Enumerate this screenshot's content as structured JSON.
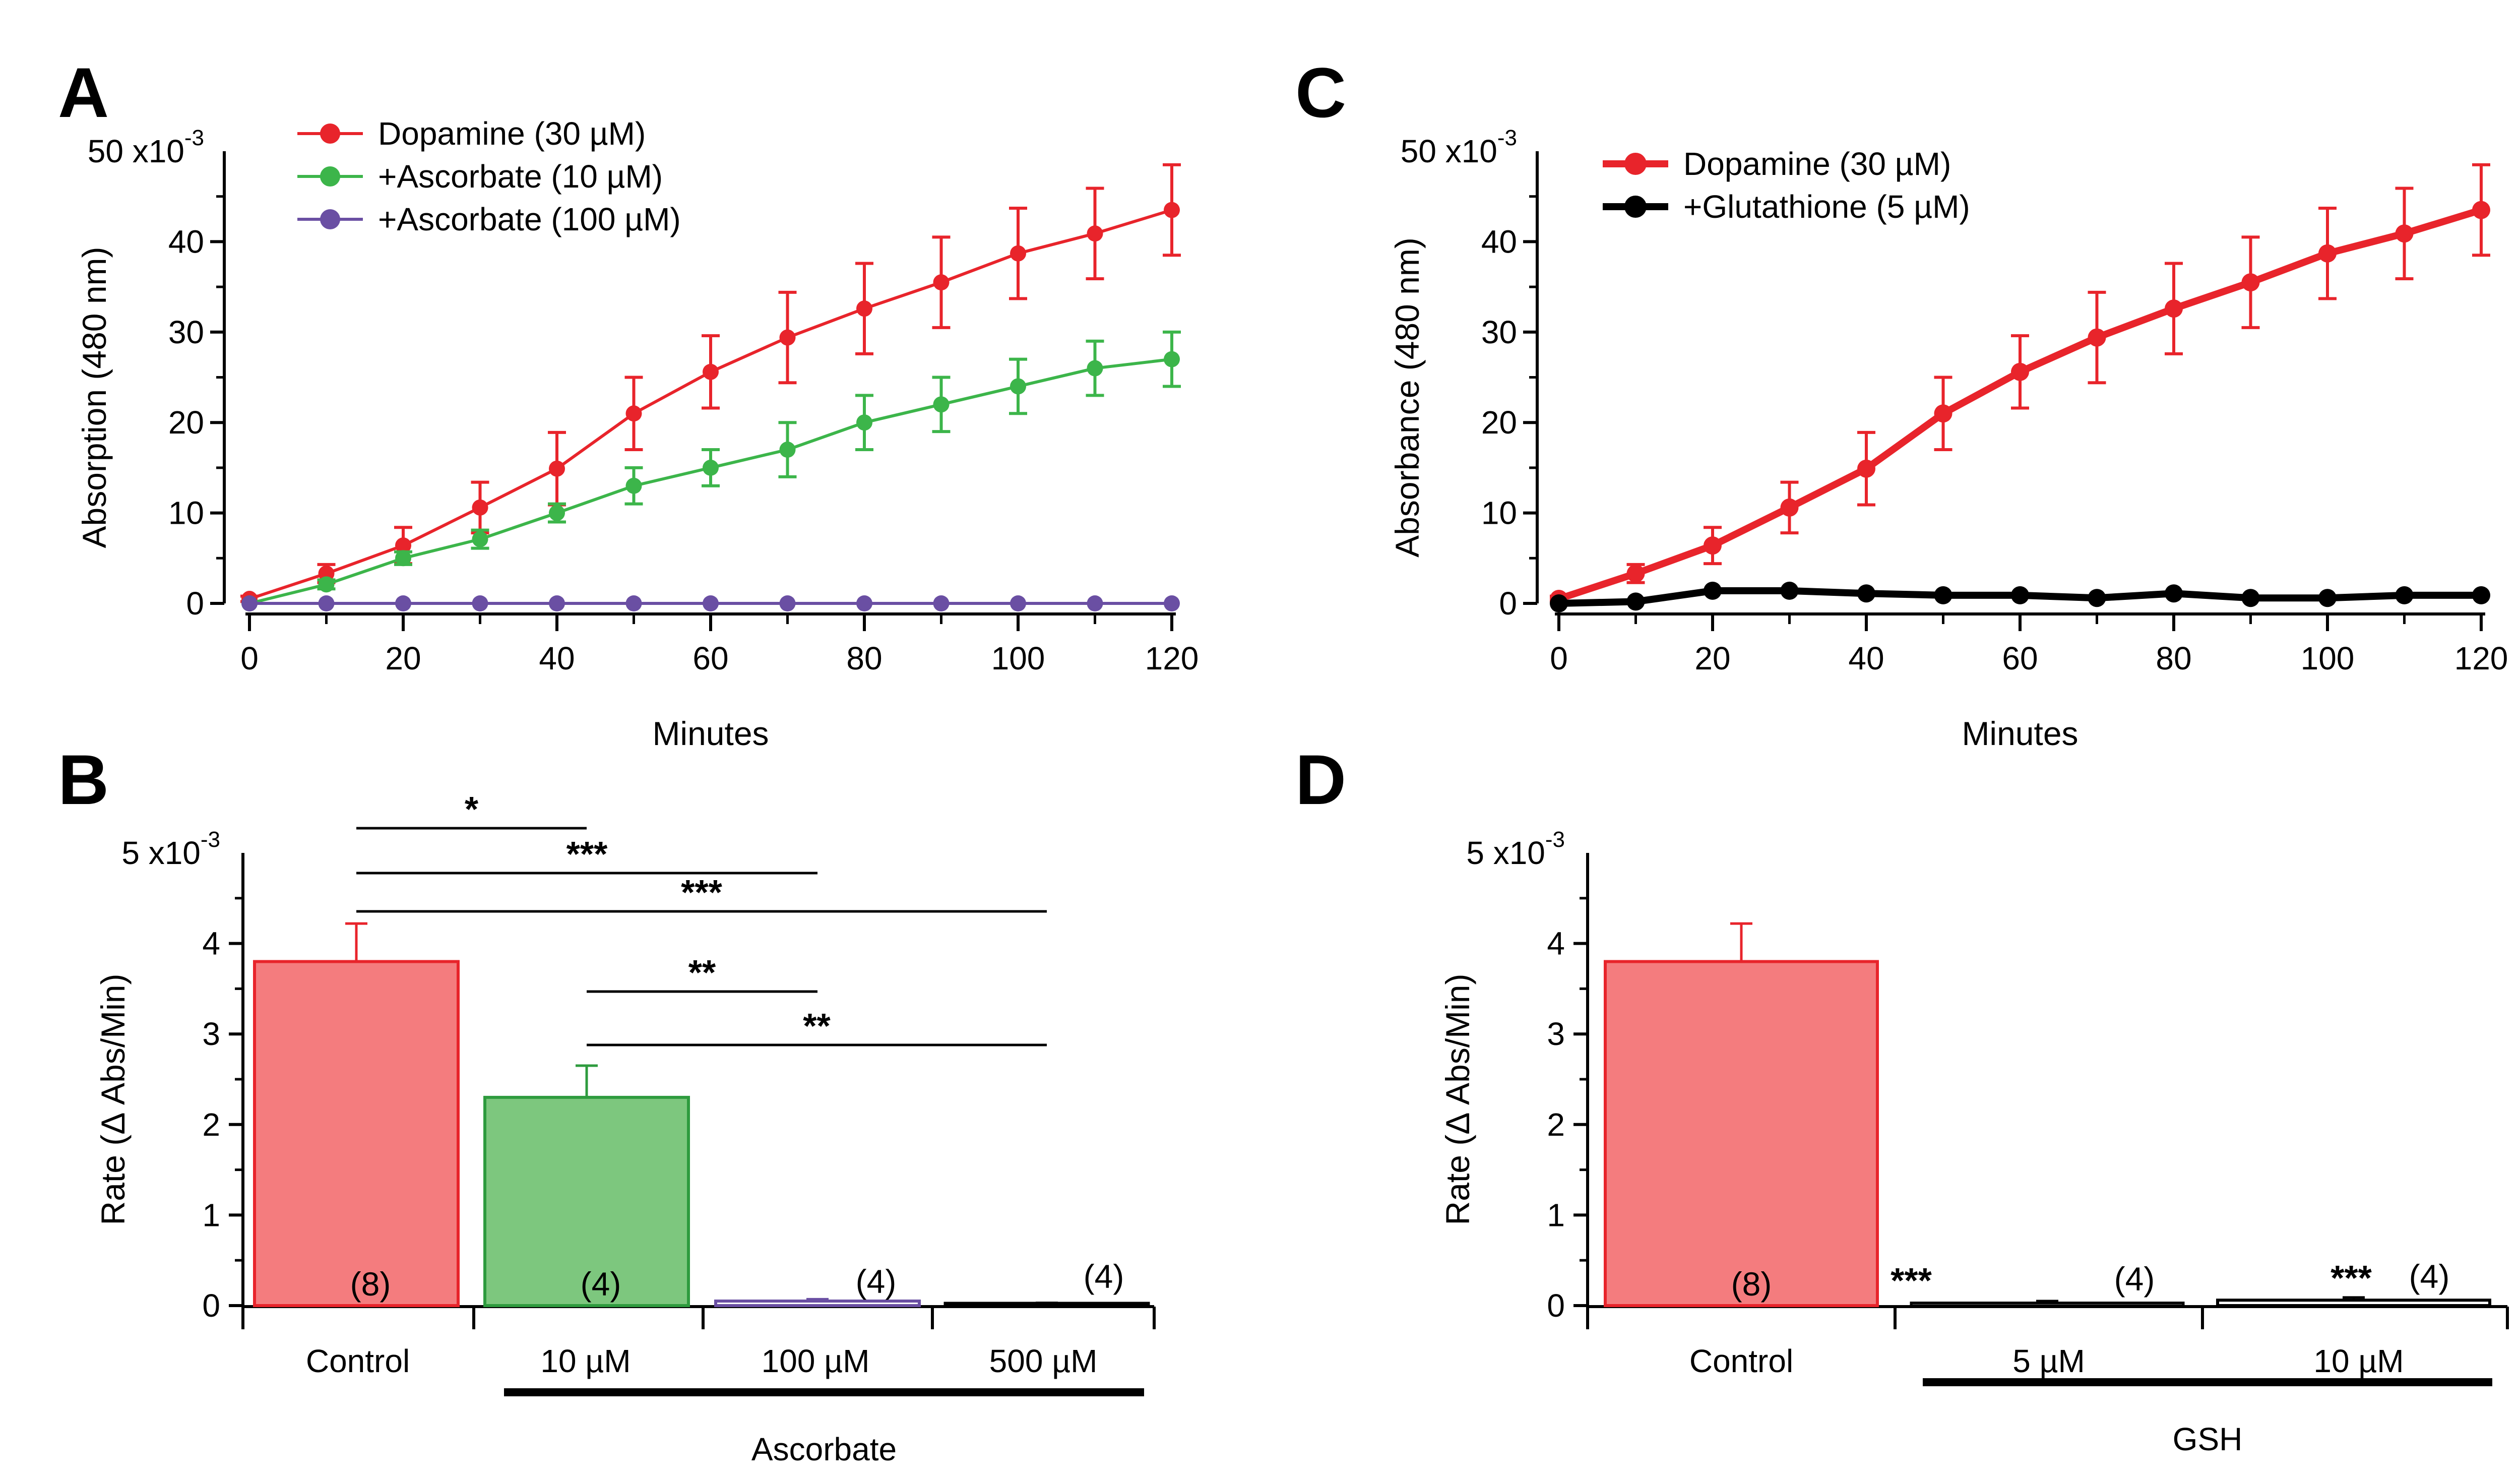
{
  "colors": {
    "dopamine": "#e8242b",
    "ascorbate10": "#3cb54a",
    "ascorbate100": "#6a4fa3",
    "glutathione": "#000000",
    "control_bar_fill": "#f47c7e",
    "control_bar_stroke": "#e8242b",
    "asc10_bar_fill": "#7dc77e",
    "asc10_bar_stroke": "#2e9b3e",
    "asc100_bar_stroke": "#6a4fa3"
  },
  "chart_data": [
    {
      "panel": "A",
      "type": "line",
      "xlabel": "Minutes",
      "ylabel": "Absorption (480 nm)",
      "y_unit_label": "50 x10",
      "y_unit_exp": "-3",
      "xlim": [
        0,
        120
      ],
      "ylim": [
        0,
        50
      ],
      "xticks": [
        0,
        20,
        40,
        60,
        80,
        100,
        120
      ],
      "yticks": [
        0,
        10,
        20,
        30,
        40
      ],
      "legend_position": "top-left",
      "series": [
        {
          "name": "Dopamine (30 µM)",
          "color_key": "dopamine",
          "x": [
            0,
            10,
            20,
            30,
            40,
            50,
            60,
            70,
            80,
            90,
            100,
            110,
            120
          ],
          "y": [
            0.5,
            3.3,
            6.4,
            10.6,
            14.9,
            21.0,
            25.6,
            29.4,
            32.6,
            35.5,
            38.7,
            40.9,
            43.5
          ],
          "err": [
            0.3,
            1.0,
            2.0,
            2.8,
            4.0,
            4.0,
            4.0,
            5.0,
            5.0,
            5.0,
            5.0,
            5.0,
            5.0
          ]
        },
        {
          "name": "+Ascorbate (10 µM)",
          "color_key": "ascorbate10",
          "x": [
            0,
            10,
            20,
            30,
            40,
            50,
            60,
            70,
            80,
            90,
            100,
            110,
            120
          ],
          "y": [
            0,
            2.1,
            5.0,
            7.1,
            10.0,
            13.0,
            15.0,
            17.0,
            20.0,
            22.0,
            24.0,
            26.0,
            27.0
          ],
          "err": [
            0,
            0.5,
            0.7,
            1.0,
            1.0,
            2.0,
            2.0,
            3.0,
            3.0,
            3.0,
            3.0,
            3.0,
            3.0
          ]
        },
        {
          "name": "+Ascorbate (100 µM)",
          "color_key": "ascorbate100",
          "x": [
            0,
            10,
            20,
            30,
            40,
            50,
            60,
            70,
            80,
            90,
            100,
            110,
            120
          ],
          "y": [
            0,
            0,
            0,
            0,
            0,
            0,
            0,
            0,
            0,
            0,
            0,
            0,
            0
          ],
          "err": [
            0,
            0,
            0,
            0,
            0,
            0,
            0,
            0,
            0,
            0,
            0,
            0,
            0
          ]
        }
      ]
    },
    {
      "panel": "C",
      "type": "line",
      "xlabel": "Minutes",
      "ylabel": "Absorbance (480 nm)",
      "y_unit_label": "50 x10",
      "y_unit_exp": "-3",
      "xlim": [
        0,
        120
      ],
      "ylim": [
        0,
        50
      ],
      "xticks": [
        0,
        20,
        40,
        60,
        80,
        100,
        120
      ],
      "yticks": [
        0,
        10,
        20,
        30,
        40
      ],
      "legend_position": "top-left",
      "series": [
        {
          "name": "Dopamine (30 µM)",
          "color_key": "dopamine",
          "x": [
            0,
            10,
            20,
            30,
            40,
            50,
            60,
            70,
            80,
            90,
            100,
            110,
            120
          ],
          "y": [
            0.5,
            3.3,
            6.4,
            10.6,
            14.9,
            21.0,
            25.6,
            29.4,
            32.6,
            35.5,
            38.7,
            40.9,
            43.5
          ],
          "err": [
            0.3,
            1.0,
            2.0,
            2.8,
            4.0,
            4.0,
            4.0,
            5.0,
            5.0,
            5.0,
            5.0,
            5.0,
            5.0
          ]
        },
        {
          "name": "+Glutathione (5 µM)",
          "color_key": "glutathione",
          "x": [
            0,
            10,
            20,
            30,
            40,
            50,
            60,
            70,
            80,
            90,
            100,
            110,
            120
          ],
          "y": [
            0,
            0.2,
            1.4,
            1.4,
            1.1,
            0.9,
            0.9,
            0.6,
            1.1,
            0.6,
            0.6,
            0.9,
            0.9
          ],
          "err": [
            0,
            0,
            0,
            0,
            0,
            0,
            0,
            0,
            0,
            0,
            0,
            0,
            0
          ]
        }
      ]
    },
    {
      "panel": "B",
      "type": "bar",
      "ylabel": "Rate (Δ Abs/Min)",
      "y_unit_label": "5 x10",
      "y_unit_exp": "-3",
      "ylim": [
        0,
        5
      ],
      "yticks": [
        0,
        1,
        2,
        3,
        4
      ],
      "categories": [
        "Control",
        "10 µM",
        "100 µM",
        "500 µM"
      ],
      "values": [
        3.8,
        2.3,
        0.05,
        0.02
      ],
      "errors": [
        0.42,
        0.35,
        0.02,
        0.01
      ],
      "n_labels": [
        "(8)",
        "(4)",
        "(4)",
        "(4)"
      ],
      "group_label": "Ascorbate",
      "group_categories": [
        1,
        3
      ],
      "significance": [
        {
          "from": 0,
          "to": 1,
          "label": "*"
        },
        {
          "from": 0,
          "to": 2,
          "label": "***"
        },
        {
          "from": 0,
          "to": 3,
          "label": "***"
        },
        {
          "from": 1,
          "to": 2,
          "label": "**"
        },
        {
          "from": 1,
          "to": 3,
          "label": "**"
        }
      ]
    },
    {
      "panel": "D",
      "type": "bar",
      "ylabel": "Rate (Δ Abs/Min)",
      "y_unit_label": "5 x10",
      "y_unit_exp": "-3",
      "ylim": [
        0,
        5
      ],
      "yticks": [
        0,
        1,
        2,
        3,
        4
      ],
      "categories": [
        "Control",
        "5 µM",
        "10 µM"
      ],
      "values": [
        3.8,
        0.03,
        0.06
      ],
      "errors": [
        0.42,
        0.02,
        0.03
      ],
      "n_labels": [
        "(8)",
        "(4)",
        "(4)"
      ],
      "stars": [
        "",
        "***",
        "***"
      ],
      "group_label": "GSH",
      "group_categories": [
        1,
        2
      ]
    }
  ]
}
